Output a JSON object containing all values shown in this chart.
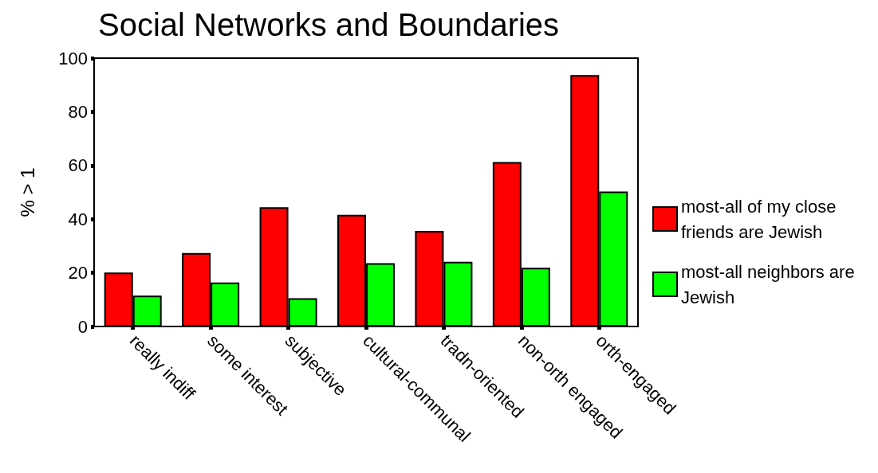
{
  "chart_data": {
    "type": "bar",
    "title": "Social Networks and Boundaries",
    "ylabel": "% > 1",
    "categories": [
      "really indiff",
      "some interest",
      "subjective",
      "cultural-communal",
      "tradn-oriented",
      "non-orth engaged",
      "orth-engaged"
    ],
    "series": [
      {
        "name": "most-all of my close friends are Jewish",
        "color": "#ff0000",
        "values": [
          20.1,
          27.4,
          44.4,
          41.6,
          35.6,
          61.3,
          93.7
        ]
      },
      {
        "name": "most-all neighbors are Jewish",
        "color": "#00ff00",
        "values": [
          11.5,
          16.4,
          10.5,
          23.6,
          24.1,
          21.9,
          50.3
        ]
      }
    ],
    "ylim": [
      0,
      100
    ],
    "yticks": [
      0,
      20,
      40,
      60,
      80,
      100
    ],
    "grid": false,
    "legend": "right"
  }
}
